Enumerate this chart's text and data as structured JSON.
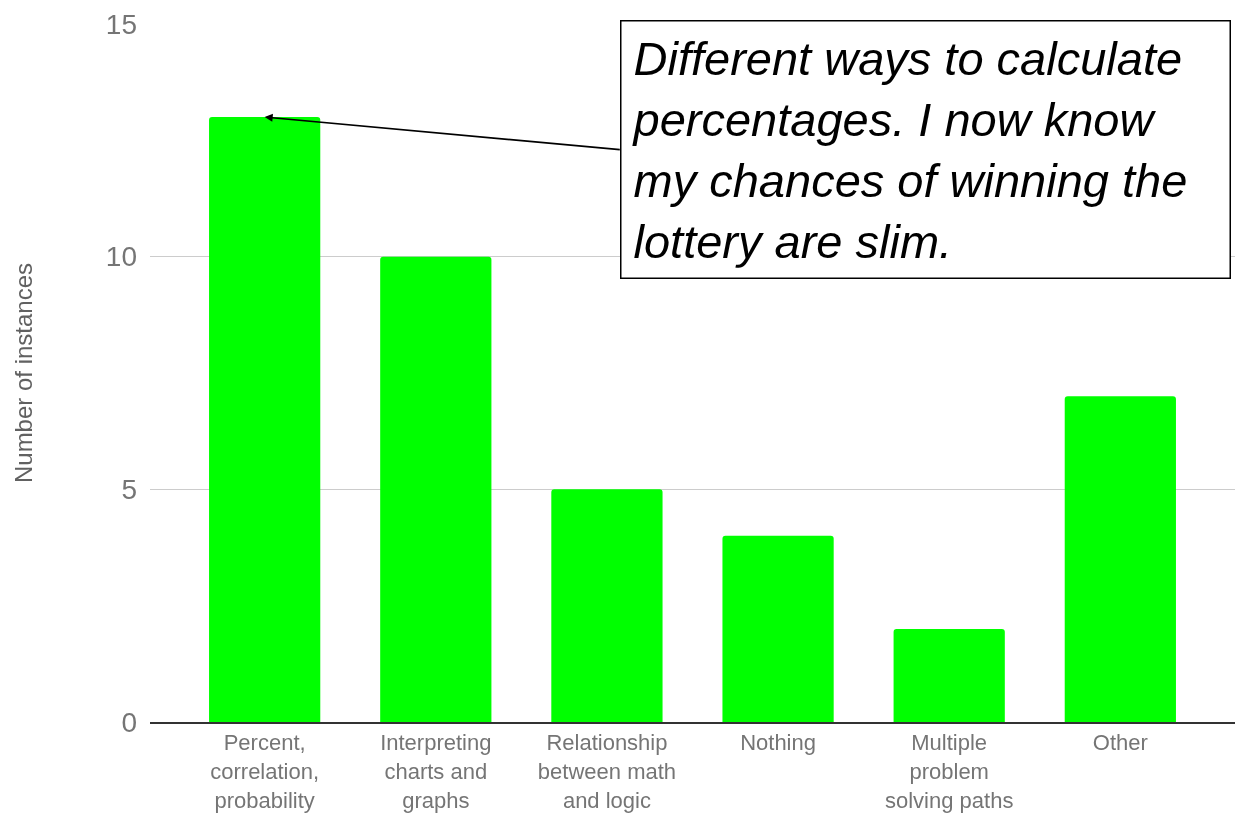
{
  "chart_data": {
    "type": "bar",
    "ylabel": "Number of instances",
    "categories": [
      "Percent, correlation, probability",
      "Interpreting charts and graphs",
      "Relationship between math and logic",
      "Nothing",
      "Multiple problem solving paths",
      "Other"
    ],
    "values": [
      13,
      10,
      5,
      4,
      2,
      7
    ],
    "color": "#00ff00",
    "ylim": [
      0,
      15
    ],
    "yticks": [
      0,
      5,
      10,
      15
    ],
    "grid": "y",
    "annotations": [
      {
        "text": "Different ways to calculate percentages. I now know my chances of winning the lottery are slim.",
        "x": "Percent, correlation, probability",
        "y": 13
      }
    ]
  }
}
